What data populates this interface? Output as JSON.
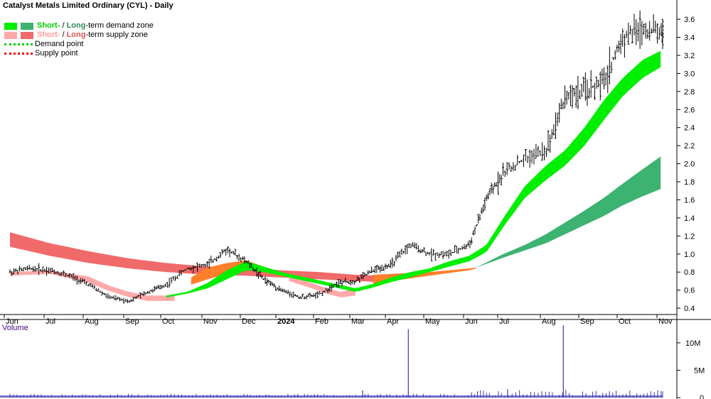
{
  "chart_title": "Catalyst Metals Limited Ordinary (CYL) - Daily",
  "legend": {
    "demand_zone": {
      "short": "Short-",
      "sep": " / ",
      "long": "Long",
      "rest": "-term demand zone"
    },
    "supply_zone": {
      "short": "Short-",
      "sep": " / ",
      "long": "Long",
      "rest": "-term supply zone"
    },
    "demand_point": "Demand point",
    "supply_point": "Supply point"
  },
  "colors": {
    "short_demand": "#00ee00",
    "long_demand": "#3cb371",
    "short_supply": "#ffaaaa",
    "long_supply": "#f06a6a",
    "supply_orange": "#ff7f2a",
    "candles": "#000000",
    "volume": "#3a35b5"
  },
  "volume_label": "Volume",
  "chart_data": {
    "type": "line",
    "title": "Catalyst Metals Limited Ordinary (CYL) - Daily",
    "x_ticks": [
      "Jun",
      "Jul",
      "Aug",
      "Sep",
      "Oct",
      "Nov",
      "Dec",
      "2024",
      "Feb",
      "Mar",
      "Apr",
      "May",
      "Jun",
      "Jul",
      "Aug",
      "Sep",
      "Oct",
      "Nov"
    ],
    "ylim": [
      0.33,
      3.75
    ],
    "y_ticks": [
      0.4,
      0.6,
      0.8,
      1.0,
      1.2,
      1.4,
      1.6,
      1.8,
      2.0,
      2.2,
      2.4,
      2.6,
      2.8,
      3.0,
      3.2,
      3.4,
      3.6
    ],
    "y_tick_labels": [
      "0.4",
      "0.6",
      "0.8",
      "1.0",
      "1.2",
      "1.4",
      "1.6",
      "1.8",
      "2.0",
      "2.2",
      "2.4",
      "2.6",
      "2.8",
      "3.0",
      "3.2",
      "3.4",
      "3.6"
    ],
    "volume_ylim": [
      0,
      14000000
    ],
    "volume_ticks": [
      0,
      5000000,
      10000000
    ],
    "volume_tick_labels": [
      "0",
      "5M",
      "10M"
    ],
    "price_series": {
      "name": "Close (approx.)",
      "x": [
        0,
        0.5,
        1,
        1.5,
        2,
        2.5,
        3,
        3.5,
        4,
        4.5,
        5,
        5.5,
        6,
        6.5,
        7,
        7.5,
        8,
        8.5,
        9,
        9.5,
        10,
        10.5,
        11,
        11.5,
        12,
        12.5,
        13,
        13.5,
        14,
        14.5,
        15,
        15.5,
        16,
        16.5,
        17,
        17.4
      ],
      "y": [
        0.8,
        0.84,
        0.82,
        0.76,
        0.66,
        0.52,
        0.48,
        0.58,
        0.66,
        0.84,
        0.88,
        1.05,
        0.92,
        0.72,
        0.6,
        0.52,
        0.55,
        0.68,
        0.7,
        0.82,
        0.88,
        1.1,
        1.0,
        1.0,
        1.1,
        1.6,
        1.9,
        2.05,
        2.15,
        2.75,
        2.8,
        2.9,
        3.4,
        3.5,
        3.45,
        3.4
      ]
    },
    "long_supply_zone": {
      "x": [
        0,
        1,
        2,
        3,
        4,
        5,
        6,
        7,
        8,
        9,
        9.8
      ],
      "upper": [
        1.24,
        1.12,
        1.03,
        0.95,
        0.9,
        0.86,
        0.85,
        0.82,
        0.8,
        0.77,
        0.76
      ],
      "lower": [
        1.08,
        0.98,
        0.9,
        0.84,
        0.8,
        0.77,
        0.76,
        0.74,
        0.72,
        0.7,
        0.69
      ]
    },
    "short_supply_zone": {
      "x": [
        0,
        1,
        2,
        2.5,
        3,
        3.5,
        4.2
      ],
      "upper": [
        0.8,
        0.82,
        0.75,
        0.65,
        0.58,
        0.54,
        0.54
      ],
      "lower": [
        0.76,
        0.78,
        0.68,
        0.59,
        0.52,
        0.48,
        0.48
      ]
    },
    "short_supply_zone_2": {
      "x": [
        7.2,
        7.8,
        8.2,
        8.6,
        9.0
      ],
      "upper": [
        0.76,
        0.68,
        0.62,
        0.58,
        0.62
      ],
      "lower": [
        0.7,
        0.62,
        0.56,
        0.52,
        0.54
      ]
    },
    "short_demand_zone": {
      "x": [
        4.0,
        4.5,
        5,
        5.5,
        6,
        6.5,
        7,
        7.2,
        9.0,
        9.5,
        10,
        10.5,
        11,
        11.5,
        12,
        12.5,
        13,
        13.5,
        14,
        14.5,
        15,
        15.5,
        16,
        16.5,
        16.95
      ],
      "upper": [
        0.54,
        0.58,
        0.68,
        0.82,
        0.92,
        0.86,
        0.8,
        0.78,
        0.62,
        0.67,
        0.74,
        0.8,
        0.84,
        0.92,
        0.98,
        1.1,
        1.4,
        1.75,
        1.98,
        2.15,
        2.4,
        2.7,
        2.95,
        3.15,
        3.25
      ],
      "lower": [
        0.52,
        0.56,
        0.62,
        0.72,
        0.82,
        0.8,
        0.76,
        0.74,
        0.58,
        0.63,
        0.69,
        0.74,
        0.8,
        0.86,
        0.92,
        1.02,
        1.3,
        1.62,
        1.82,
        1.98,
        2.2,
        2.48,
        2.75,
        2.95,
        3.07
      ]
    },
    "long_demand_zone": {
      "x": [
        12.2,
        13,
        13.5,
        14,
        14.5,
        15,
        15.5,
        16,
        16.5,
        16.95
      ],
      "upper": [
        0.85,
        1.0,
        1.1,
        1.22,
        1.35,
        1.48,
        1.62,
        1.78,
        1.94,
        2.08
      ],
      "lower": [
        0.85,
        0.96,
        1.04,
        1.12,
        1.22,
        1.32,
        1.42,
        1.54,
        1.64,
        1.72
      ]
    },
    "orange_zone": [
      {
        "x": [
          4.6,
          5.0,
          5.5,
          6.0,
          6.5,
          7.0
        ],
        "upper": [
          0.74,
          0.85,
          0.9,
          0.93,
          0.86,
          0.8
        ],
        "lower": [
          0.66,
          0.72,
          0.78,
          0.84,
          0.8,
          0.75
        ]
      },
      {
        "x": [
          9.5,
          10,
          10.5,
          11,
          11.5,
          12,
          12.2
        ],
        "upper": [
          0.77,
          0.78,
          0.79,
          0.8,
          0.82,
          0.84,
          0.85
        ],
        "lower": [
          0.67,
          0.7,
          0.73,
          0.76,
          0.79,
          0.82,
          0.84
        ]
      }
    ],
    "volume_spikes": [
      {
        "x": 9.2,
        "value": 1300000
      },
      {
        "x": 10.45,
        "value": 12500000
      },
      {
        "x": 13.1,
        "value": 1500000
      },
      {
        "x": 14.45,
        "value": 13200000
      }
    ]
  }
}
